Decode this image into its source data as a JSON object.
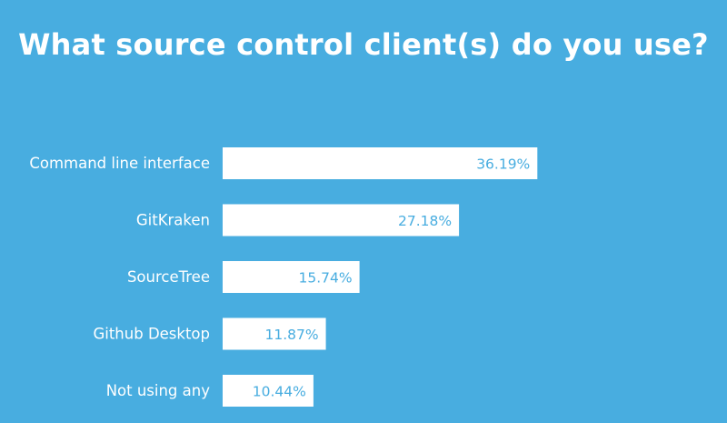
{
  "title": "What source control client(s) do you use?",
  "colors": {
    "background": "#48ade0",
    "bar": "#ffffff",
    "value_text": "#48ade0",
    "label_text": "#ffffff"
  },
  "chart_data": {
    "type": "bar",
    "orientation": "horizontal",
    "title": "What source control client(s) do you use?",
    "categories": [
      "Command line interface",
      "GitKraken",
      "SourceTree",
      "Github Desktop",
      "Not using any"
    ],
    "values": [
      36.19,
      27.18,
      15.74,
      11.87,
      10.44
    ],
    "value_labels": [
      "36.19%",
      "27.18%",
      "15.74%",
      "11.87%",
      "10.44%"
    ],
    "xlabel": "",
    "ylabel": "",
    "xlim": [
      0,
      58
    ],
    "grid": false,
    "legend": "none"
  }
}
